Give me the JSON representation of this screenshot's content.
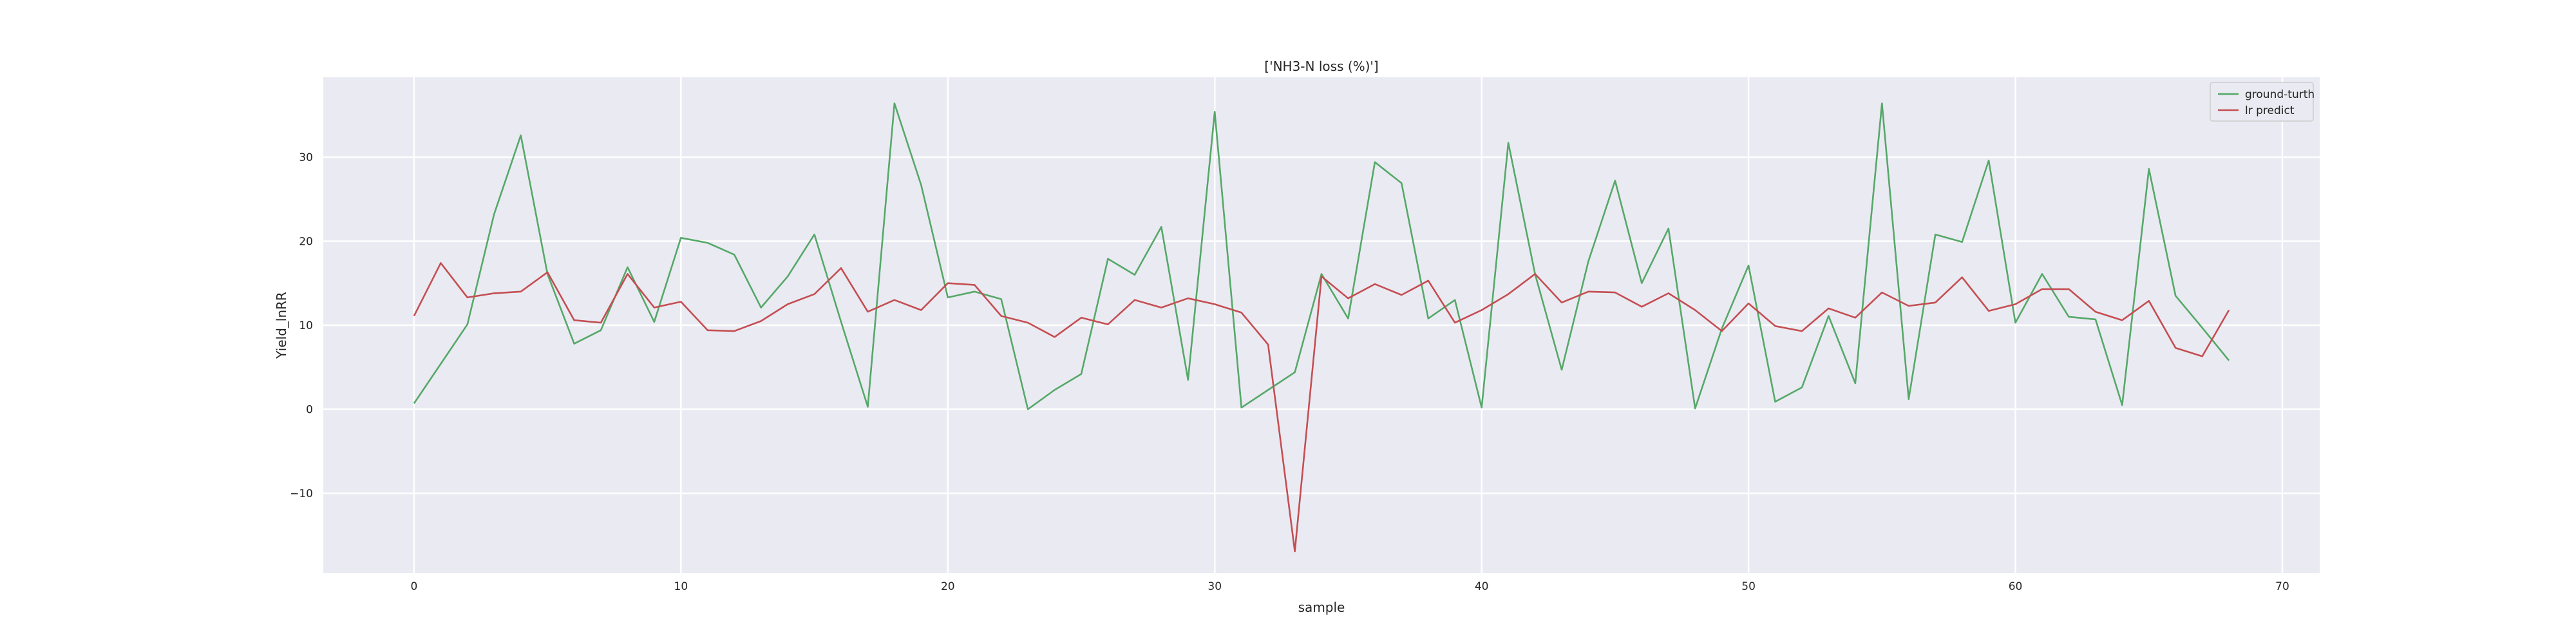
{
  "chart_data": {
    "type": "line",
    "title": "['NH3-N loss (%)']",
    "xlabel": "sample",
    "ylabel": "Yield_lnRR",
    "xlim": [
      -3.4,
      71.4
    ],
    "ylim": [
      -19.5,
      39.5
    ],
    "xticks": [
      0,
      10,
      20,
      30,
      40,
      50,
      60,
      70
    ],
    "yticks": [
      -10,
      0,
      10,
      20,
      30
    ],
    "ytick_labels": [
      "−10",
      "0",
      "10",
      "20",
      "30"
    ],
    "grid": true,
    "legend_position": "top-right",
    "series": [
      {
        "name": "ground-turth",
        "color": "#55a868",
        "x": [
          0,
          1,
          2,
          3,
          4,
          5,
          6,
          7,
          8,
          9,
          10,
          11,
          12,
          13,
          14,
          15,
          16,
          17,
          18,
          19,
          20,
          21,
          22,
          23,
          24,
          25,
          26,
          27,
          28,
          29,
          30,
          31,
          32,
          33,
          34,
          35,
          36,
          37,
          38,
          39,
          40,
          41,
          42,
          43,
          44,
          45,
          46,
          47,
          48,
          49,
          50,
          51,
          52,
          53,
          54,
          55,
          56,
          57,
          58,
          59,
          60,
          61,
          62,
          63,
          64,
          65,
          66,
          67,
          68
        ],
        "values": [
          0.7,
          5.4,
          10.1,
          23.2,
          32.6,
          16.1,
          7.8,
          9.4,
          16.9,
          10.4,
          20.4,
          19.8,
          18.4,
          12.1,
          15.8,
          20.8,
          10.4,
          0.3,
          36.4,
          26.7,
          13.3,
          14.0,
          13.1,
          0.0,
          2.3,
          4.2,
          17.9,
          16.0,
          21.7,
          3.5,
          35.4,
          0.2,
          2.3,
          4.4,
          16.1,
          10.8,
          29.4,
          26.9,
          10.8,
          13.0,
          0.2,
          31.7,
          16.1,
          4.7,
          17.6,
          27.2,
          15.0,
          21.5,
          0.1,
          9.6,
          17.1,
          0.9,
          2.6,
          11.1,
          3.1,
          36.4,
          1.2,
          20.8,
          19.9,
          29.6,
          10.3,
          16.1,
          11.0,
          10.7,
          0.5,
          28.6,
          13.5,
          9.7,
          5.8
        ]
      },
      {
        "name": "lr predict",
        "color": "#c44e52",
        "x": [
          0,
          1,
          2,
          3,
          4,
          5,
          6,
          7,
          8,
          9,
          10,
          11,
          12,
          13,
          14,
          15,
          16,
          17,
          18,
          19,
          20,
          21,
          22,
          23,
          24,
          25,
          26,
          27,
          28,
          29,
          30,
          31,
          32,
          33,
          34,
          35,
          36,
          37,
          38,
          39,
          40,
          41,
          42,
          43,
          44,
          45,
          46,
          47,
          48,
          49,
          50,
          51,
          52,
          53,
          54,
          55,
          56,
          57,
          58,
          59,
          60,
          61,
          62,
          63,
          64,
          65,
          66,
          67,
          68
        ],
        "values": [
          11.1,
          17.4,
          13.3,
          13.8,
          14.0,
          16.3,
          10.6,
          10.3,
          16.1,
          12.1,
          12.8,
          9.4,
          9.3,
          10.5,
          12.5,
          13.7,
          16.8,
          11.6,
          13.0,
          11.8,
          15.0,
          14.8,
          11.1,
          10.3,
          8.6,
          10.9,
          10.1,
          13.0,
          12.1,
          13.2,
          12.5,
          11.5,
          7.7,
          -16.9,
          15.8,
          13.2,
          14.9,
          13.6,
          15.3,
          10.3,
          11.8,
          13.7,
          16.1,
          12.7,
          14.0,
          13.9,
          12.2,
          13.8,
          11.8,
          9.3,
          12.6,
          9.9,
          9.3,
          12.0,
          10.9,
          13.9,
          12.3,
          12.7,
          15.7,
          11.7,
          12.5,
          14.3,
          14.3,
          11.6,
          10.6,
          12.9,
          7.3,
          6.3,
          11.8
        ]
      }
    ]
  }
}
